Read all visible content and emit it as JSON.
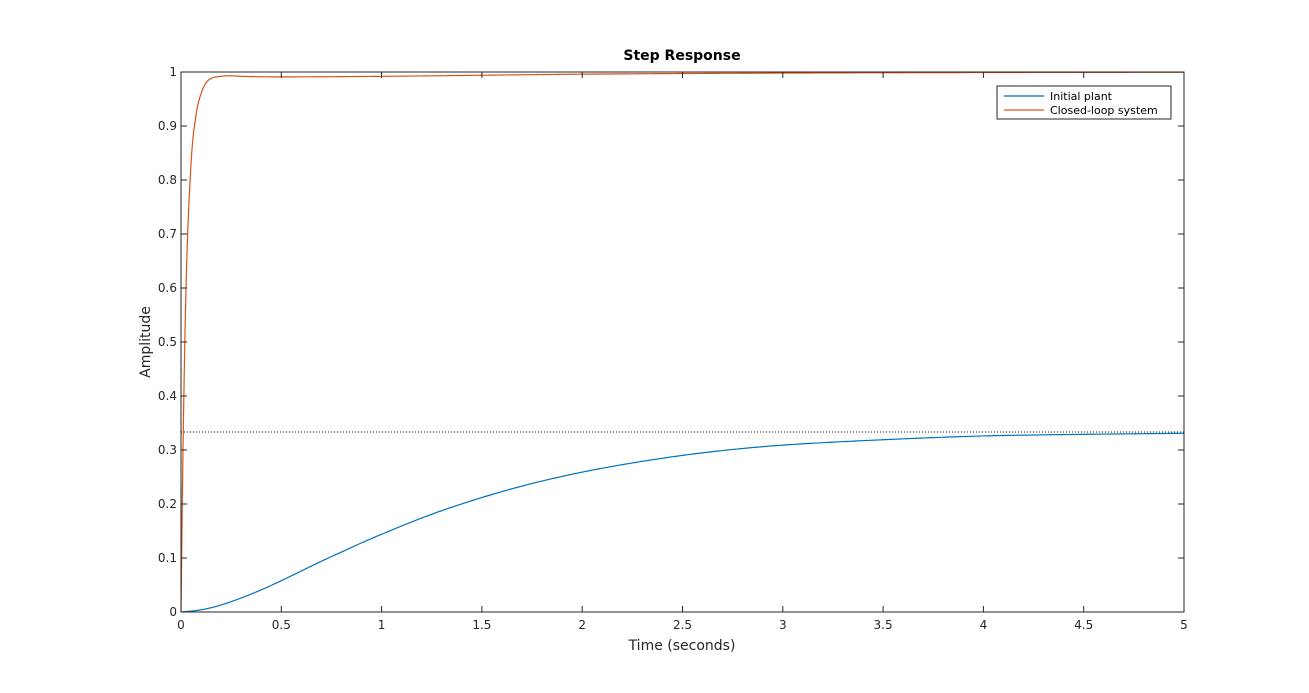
{
  "chart_data": {
    "type": "line",
    "title": "Step Response",
    "xlabel": "Time (seconds)",
    "ylabel": "Amplitude",
    "xlim": [
      0,
      5
    ],
    "ylim": [
      0,
      1
    ],
    "x_ticks": [
      "0",
      "0.5",
      "1",
      "1.5",
      "2",
      "2.5",
      "3",
      "3.5",
      "4",
      "4.5",
      "5"
    ],
    "y_ticks": [
      "0",
      "0.1",
      "0.2",
      "0.3",
      "0.4",
      "0.5",
      "0.6",
      "0.7",
      "0.8",
      "0.9",
      "1"
    ],
    "grid": false,
    "legend_position": "top-right",
    "reference_lines": [
      {
        "y": 1.0,
        "style": "dotted"
      },
      {
        "y": 0.3333,
        "style": "dotted"
      }
    ],
    "series": [
      {
        "name": "Initial plant",
        "color": "#0072BD",
        "x": [
          0,
          0.1,
          0.2,
          0.3,
          0.4,
          0.5,
          0.6,
          0.7,
          0.8,
          0.9,
          1.0,
          1.25,
          1.5,
          1.75,
          2.0,
          2.25,
          2.5,
          2.75,
          3.0,
          3.5,
          4.0,
          4.5,
          5.0
        ],
        "values": [
          0,
          0.004,
          0.013,
          0.026,
          0.041,
          0.058,
          0.076,
          0.094,
          0.111,
          0.128,
          0.144,
          0.181,
          0.212,
          0.238,
          0.259,
          0.276,
          0.29,
          0.301,
          0.309,
          0.319,
          0.326,
          0.329,
          0.331
        ]
      },
      {
        "name": "Closed-loop system",
        "color": "#D95319",
        "x": [
          0,
          0.01,
          0.025,
          0.05,
          0.075,
          0.1,
          0.125,
          0.15,
          0.2,
          0.25,
          0.3,
          0.5,
          1.0,
          1.5,
          2.0,
          3.0,
          4.0,
          5.0
        ],
        "values": [
          0,
          0.3,
          0.6,
          0.83,
          0.92,
          0.96,
          0.98,
          0.988,
          0.992,
          0.993,
          0.992,
          0.991,
          0.992,
          0.994,
          0.996,
          0.998,
          0.999,
          0.9995
        ]
      }
    ]
  }
}
